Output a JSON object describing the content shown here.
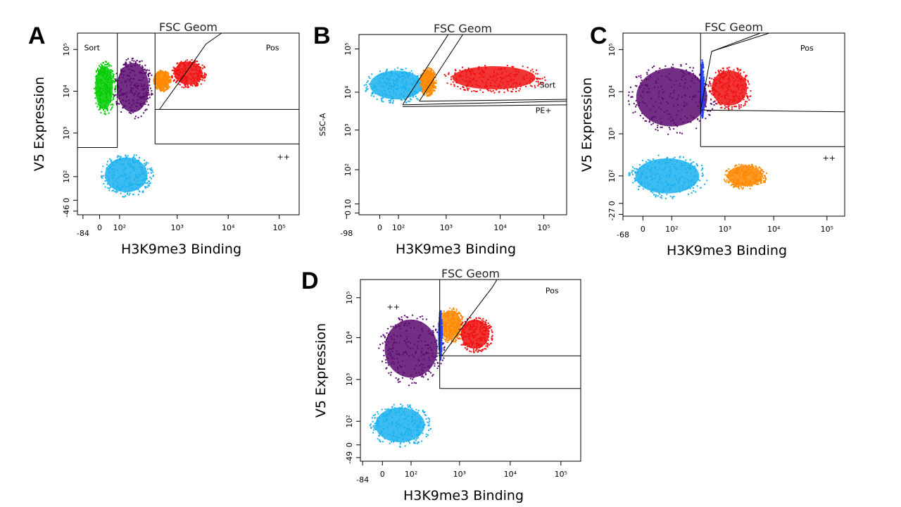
{
  "panels": [
    {
      "letter": "A",
      "title": "FSC Geom",
      "y_label": "V5 Expression",
      "x_label": "H3K9me3 Binding",
      "x_ticks": [
        "-84",
        "0",
        "10²",
        "10³",
        "10⁴",
        "10⁵"
      ],
      "y_ticks": [
        "10⁵",
        "10⁴",
        "10³",
        "10²",
        "0",
        "-46"
      ],
      "gates": [
        "Sort",
        "Pos",
        "++"
      ]
    },
    {
      "letter": "B",
      "title": "FSC Geom",
      "y_label": "SSC-A",
      "x_label": "H3K9me3 Binding",
      "x_ticks": [
        "-98",
        "0",
        "10²",
        "10³",
        "10⁴",
        "10⁵"
      ],
      "y_ticks": [
        "10⁵",
        "10⁴",
        "10³",
        "10²",
        "10",
        "0"
      ],
      "gates": [
        "Sort",
        "PE+"
      ]
    },
    {
      "letter": "C",
      "title": "FSC Geom",
      "y_label": "V5 Expression",
      "x_label": "H3K9me3 Binding",
      "x_ticks": [
        "-68",
        "0",
        "10²",
        "10³",
        "10⁴",
        "10⁵"
      ],
      "y_ticks": [
        "10⁵",
        "10⁴",
        "10³",
        "10²",
        "0",
        "-27"
      ],
      "gates": [
        "Pos",
        "++"
      ]
    },
    {
      "letter": "D",
      "title": "FSC Geom",
      "y_label": "V5 Expression",
      "x_label": "H3K9me3 Binding",
      "x_ticks": [
        "-84",
        "0",
        "10²",
        "10³",
        "10⁴",
        "10⁵"
      ],
      "y_ticks": [
        "10⁵",
        "10⁴",
        "10³",
        "10²",
        "0",
        "-49"
      ],
      "gates": [
        "++",
        "Pos"
      ]
    }
  ]
}
